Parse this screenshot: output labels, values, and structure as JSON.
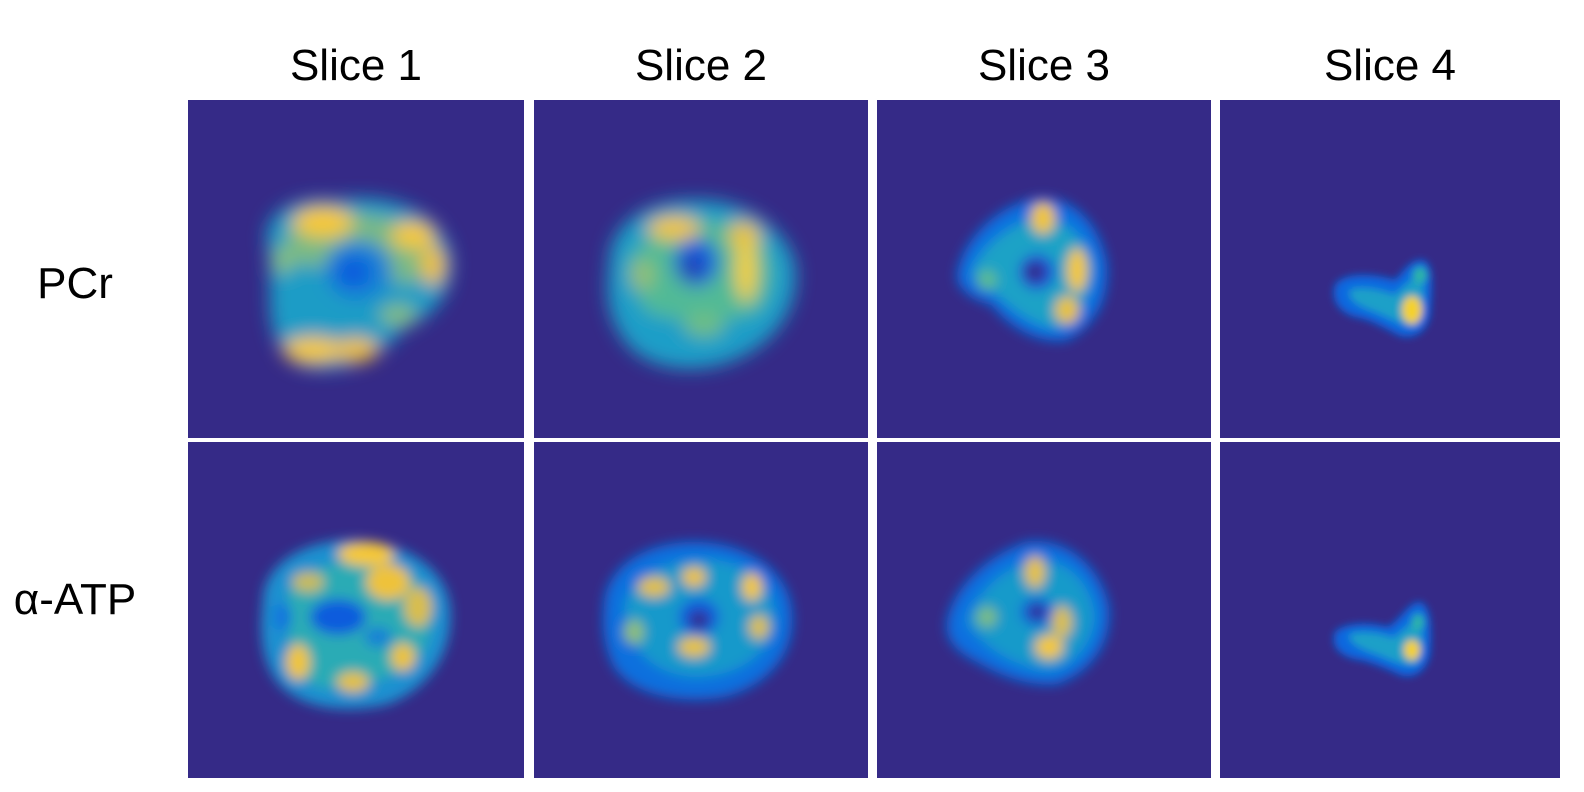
{
  "columns": [
    "Slice 1",
    "Slice 2",
    "Slice 3",
    "Slice 4"
  ],
  "rows": [
    "PCr",
    "α-ATP"
  ],
  "colors": {
    "background": "#352a87",
    "colormap": [
      "#352a87",
      "#0f5cdd",
      "#1481d6",
      "#06a4ca",
      "#2eb7a4",
      "#87bf77",
      "#d1bb59",
      "#fec832",
      "#f9fb0e"
    ]
  }
}
